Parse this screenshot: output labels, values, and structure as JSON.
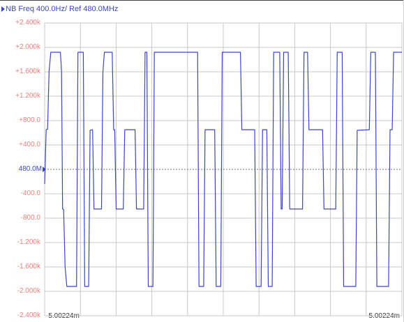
{
  "header": {
    "title": "NB Freq 400.0Hz/ Ref 480.0MHz"
  },
  "reference": {
    "label": "480.0M"
  },
  "colors": {
    "trace": "#3a46c8",
    "grid": "#c8c8c8",
    "axis_label": "#e8807a",
    "reference_line": "#777777"
  },
  "chart_data": {
    "type": "line",
    "title": "NB Freq 400.0Hz/ Ref 480.0MHz",
    "xlabel": "",
    "ylabel": "",
    "x_tick_labels": [
      "-5.00224m",
      "5.00224m"
    ],
    "xlim": [
      -5.00224,
      5.00224
    ],
    "x_unit": "ms",
    "ylim": [
      -2400,
      2400
    ],
    "y_ticks": [
      2400,
      2000,
      1600,
      1200,
      800,
      400,
      0,
      -400,
      -800,
      -1200,
      -1600,
      -2000,
      -2400
    ],
    "y_tick_labels": [
      "+2.400k",
      "+2.000k",
      "+1.600k",
      "+1.200k",
      "+800.0",
      "+400.0",
      "480.0M",
      "-400.0",
      "-800.0",
      "-1.200k",
      "-1.600k",
      "-2.000k",
      "-2.400k"
    ],
    "grid": true,
    "legend": "none",
    "series": [
      {
        "points": [
          [
            -5.002,
            -240
          ],
          [
            -4.96,
            650
          ],
          [
            -4.92,
            660
          ],
          [
            -4.88,
            1600
          ],
          [
            -4.83,
            1920
          ],
          [
            -4.56,
            1920
          ],
          [
            -4.53,
            1600
          ],
          [
            -4.5,
            -650
          ],
          [
            -4.47,
            -660
          ],
          [
            -4.43,
            -1600
          ],
          [
            -4.38,
            -1920
          ],
          [
            -4.11,
            -1920
          ],
          [
            -4.07,
            1920
          ],
          [
            -3.92,
            1920
          ],
          [
            -3.88,
            -1920
          ],
          [
            -3.77,
            -1920
          ],
          [
            -3.73,
            640
          ],
          [
            -3.66,
            650
          ],
          [
            -3.62,
            -650
          ],
          [
            -3.41,
            -650
          ],
          [
            -3.37,
            1600
          ],
          [
            -3.33,
            1920
          ],
          [
            -3.11,
            1920
          ],
          [
            -3.07,
            650
          ],
          [
            -3.04,
            650
          ],
          [
            -3.0,
            -650
          ],
          [
            -2.8,
            -650
          ],
          [
            -2.76,
            650
          ],
          [
            -2.47,
            650
          ],
          [
            -2.43,
            -650
          ],
          [
            -2.23,
            -650
          ],
          [
            -2.19,
            1920
          ],
          [
            -2.14,
            1920
          ],
          [
            -2.1,
            -1920
          ],
          [
            -1.97,
            -1920
          ],
          [
            -1.93,
            1920
          ],
          [
            -0.72,
            1920
          ],
          [
            -0.68,
            -1920
          ],
          [
            -0.55,
            -1920
          ],
          [
            -0.51,
            650
          ],
          [
            -0.24,
            650
          ],
          [
            -0.2,
            -1920
          ],
          [
            -0.07,
            -1920
          ],
          [
            -0.03,
            1920
          ],
          [
            0.48,
            1920
          ],
          [
            0.52,
            650
          ],
          [
            0.88,
            650
          ],
          [
            0.92,
            -1920
          ],
          [
            1.06,
            -1920
          ],
          [
            1.1,
            650
          ],
          [
            1.22,
            650
          ],
          [
            1.26,
            -1920
          ],
          [
            1.37,
            -1920
          ],
          [
            1.41,
            1920
          ],
          [
            1.58,
            1920
          ],
          [
            1.62,
            -650
          ],
          [
            1.65,
            -650
          ],
          [
            1.69,
            1920
          ],
          [
            1.82,
            1920
          ],
          [
            1.86,
            -650
          ],
          [
            2.22,
            -650
          ],
          [
            2.26,
            1920
          ],
          [
            2.36,
            1920
          ],
          [
            2.4,
            650
          ],
          [
            2.78,
            650
          ],
          [
            2.82,
            -650
          ],
          [
            3.15,
            -650
          ],
          [
            3.19,
            1920
          ],
          [
            3.33,
            1920
          ],
          [
            3.37,
            -1920
          ],
          [
            3.71,
            -1920
          ],
          [
            3.75,
            640
          ],
          [
            4.09,
            650
          ],
          [
            4.13,
            1920
          ],
          [
            4.26,
            1920
          ],
          [
            4.3,
            -1920
          ],
          [
            4.63,
            -1920
          ],
          [
            4.67,
            650
          ],
          [
            4.73,
            650
          ],
          [
            4.77,
            1920
          ],
          [
            5.002,
            1920
          ]
        ]
      }
    ]
  }
}
